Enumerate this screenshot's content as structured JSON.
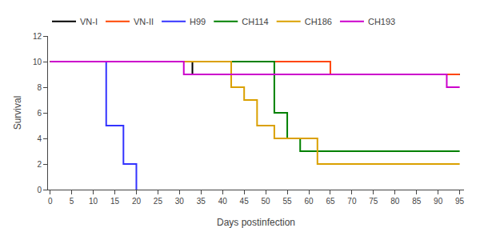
{
  "chart_data": {
    "type": "line",
    "xlabel": "Days postinfection",
    "ylabel": "Survival",
    "xlim": [
      -0.5,
      96
    ],
    "ylim": [
      0,
      12
    ],
    "xticks": [
      0,
      5,
      10,
      15,
      20,
      25,
      30,
      35,
      40,
      45,
      50,
      55,
      60,
      65,
      70,
      75,
      80,
      85,
      90,
      95
    ],
    "yticks": [
      0,
      2,
      4,
      6,
      8,
      10,
      12
    ],
    "grid": false,
    "legend": "upper left",
    "series": [
      {
        "name": "VN-I",
        "color": "#000000",
        "x": [
          0,
          33,
          33,
          95
        ],
        "values": [
          10,
          10,
          9,
          9
        ]
      },
      {
        "name": "VN-II",
        "color": "#ff4500",
        "x": [
          0,
          65,
          65,
          95
        ],
        "values": [
          10,
          10,
          9,
          9
        ]
      },
      {
        "name": "H99",
        "color": "#3333ff",
        "x": [
          0,
          13,
          13,
          17,
          17,
          20,
          20
        ],
        "values": [
          10,
          10,
          5,
          5,
          2,
          2,
          0
        ]
      },
      {
        "name": "CH114",
        "color": "#008000",
        "x": [
          0,
          52,
          52,
          55,
          55,
          58,
          58,
          95
        ],
        "values": [
          10,
          10,
          6,
          6,
          4,
          4,
          3,
          3
        ]
      },
      {
        "name": "CH186",
        "color": "#daa000",
        "x": [
          0,
          42,
          42,
          45,
          45,
          48,
          48,
          52,
          52,
          62,
          62,
          95
        ],
        "values": [
          10,
          10,
          8,
          8,
          7,
          7,
          5,
          5,
          4,
          4,
          2,
          2
        ]
      },
      {
        "name": "CH193",
        "color": "#cc00cc",
        "x": [
          0,
          31,
          31,
          92,
          92,
          95
        ],
        "values": [
          10,
          10,
          9,
          9,
          8,
          8
        ]
      }
    ]
  }
}
